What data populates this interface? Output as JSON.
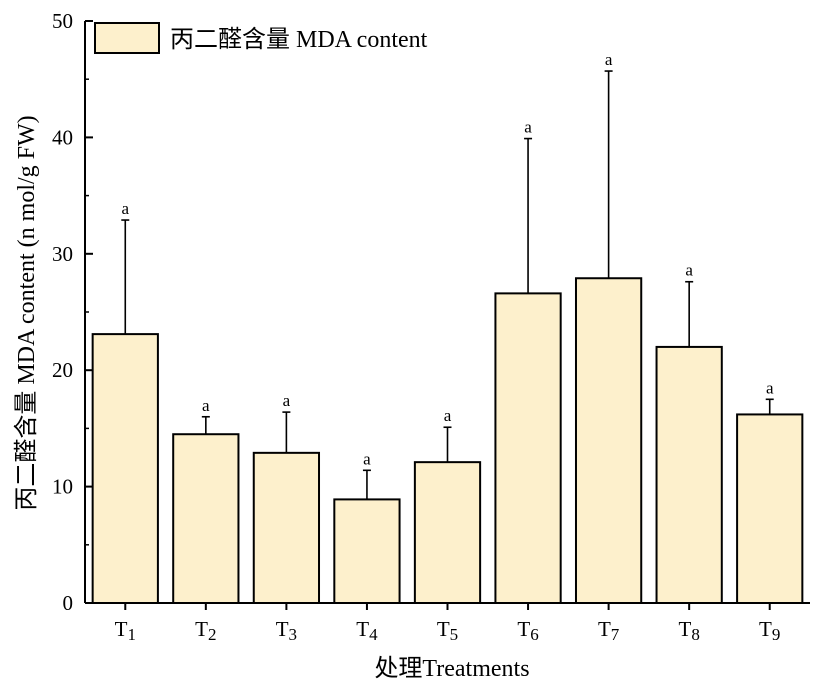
{
  "chart_data": {
    "type": "bar",
    "categories": [
      "T1",
      "T2",
      "T3",
      "T4",
      "T5",
      "T6",
      "T7",
      "T8",
      "T9"
    ],
    "category_labels": [
      {
        "base": "T",
        "sub": "1"
      },
      {
        "base": "T",
        "sub": "2"
      },
      {
        "base": "T",
        "sub": "3"
      },
      {
        "base": "T",
        "sub": "4"
      },
      {
        "base": "T",
        "sub": "5"
      },
      {
        "base": "T",
        "sub": "6"
      },
      {
        "base": "T",
        "sub": "7"
      },
      {
        "base": "T",
        "sub": "8"
      },
      {
        "base": "T",
        "sub": "9"
      }
    ],
    "series": [
      {
        "name": "丙二醛含量 MDA content",
        "values": [
          23.1,
          14.5,
          12.9,
          8.9,
          12.1,
          26.6,
          27.9,
          22.0,
          16.2
        ],
        "errors": [
          9.8,
          1.5,
          3.5,
          2.5,
          3.0,
          13.3,
          17.8,
          5.6,
          1.3
        ],
        "significance": [
          "a",
          "a",
          "a",
          "a",
          "a",
          "a",
          "a",
          "a",
          "a"
        ]
      }
    ],
    "xlabel": "处理Treatments",
    "ylabel": "丙二醛含量 MDA content (n mol/g FW)",
    "ylim": [
      0,
      50
    ],
    "yticks": [
      0,
      10,
      20,
      30,
      40,
      50
    ],
    "grid": false,
    "legend_position": "top-left",
    "colors": {
      "bar_fill": "#FDF0CC",
      "bar_stroke": "#000000",
      "axis": "#000000"
    }
  }
}
